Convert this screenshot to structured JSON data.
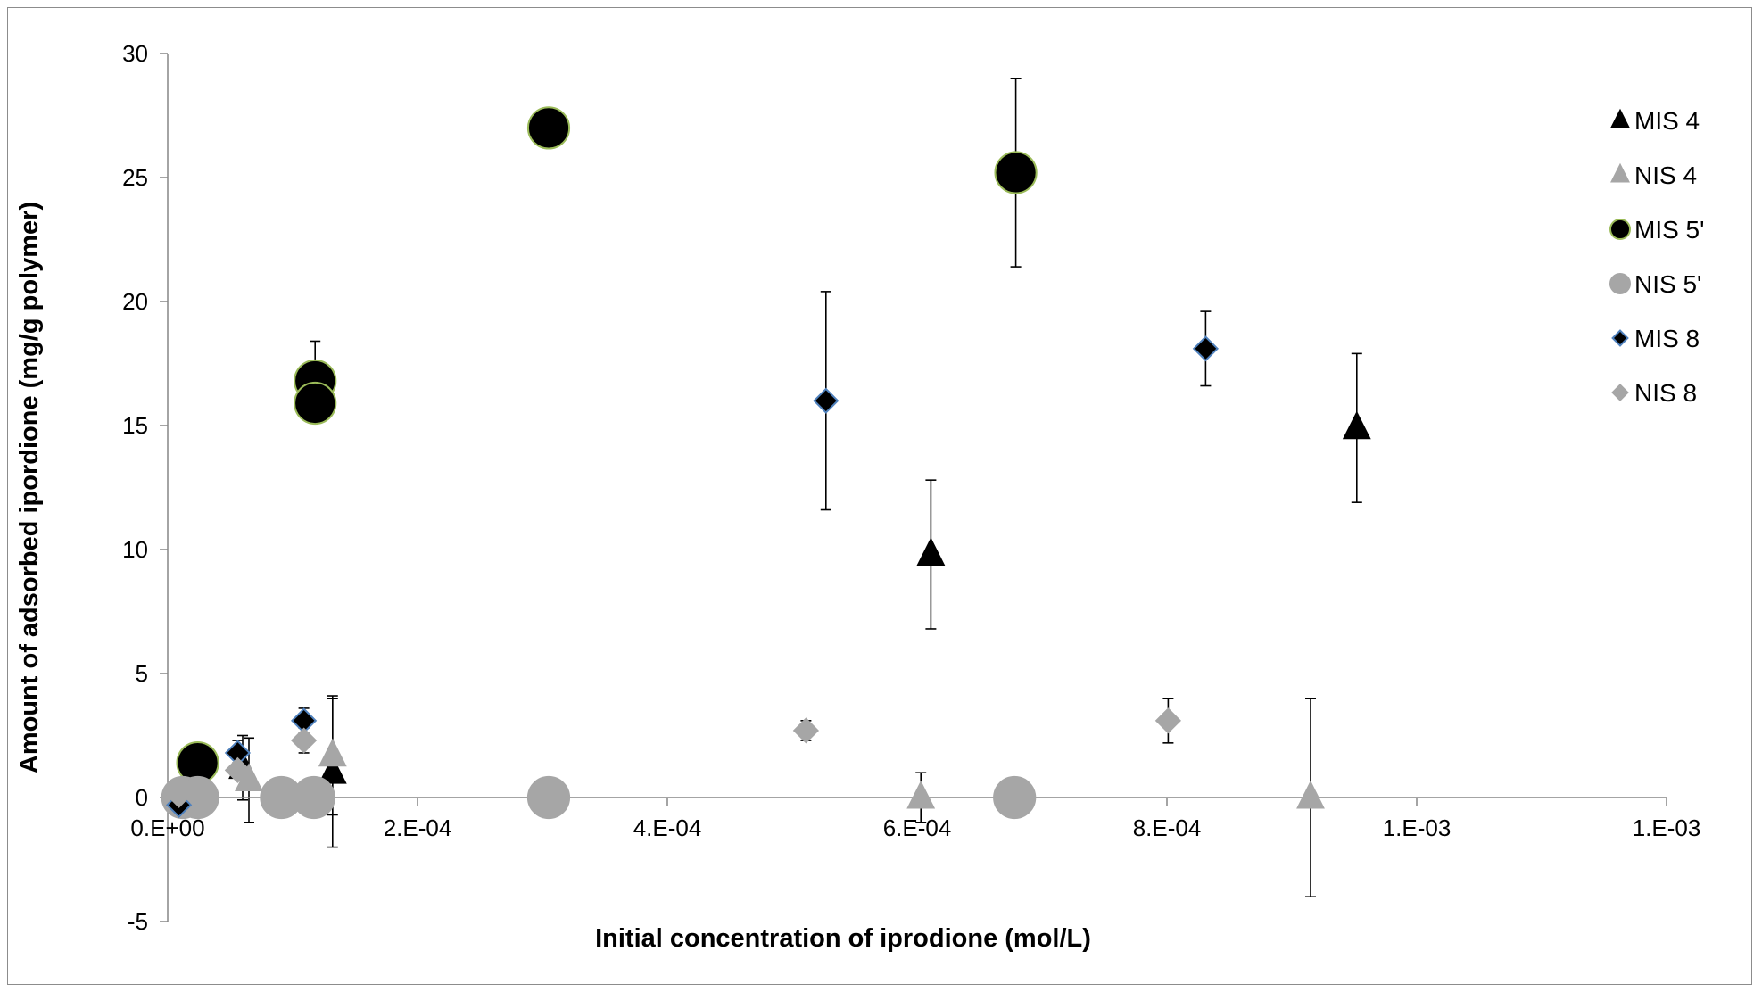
{
  "chart_data": {
    "type": "scatter",
    "title": "",
    "xlabel": "Initial concentration of iprodione (mol/L)",
    "ylabel": "Amount of adsorbed ipordione (mg/g polymer)",
    "xlim": [
      0,
      0.0012
    ],
    "ylim": [
      -5,
      30
    ],
    "x_ticks": [
      {
        "value": 0,
        "label": "0.E+00"
      },
      {
        "value": 0.0002,
        "label": "2.E-04"
      },
      {
        "value": 0.0004,
        "label": "4.E-04"
      },
      {
        "value": 0.0006,
        "label": "6.E-04"
      },
      {
        "value": 0.0008,
        "label": "8.E-04"
      },
      {
        "value": 0.001,
        "label": "1.E-03"
      },
      {
        "value": 0.0012,
        "label": "1.E-03"
      }
    ],
    "y_ticks": [
      {
        "value": -5,
        "label": "-5"
      },
      {
        "value": 0,
        "label": "0"
      },
      {
        "value": 5,
        "label": "5"
      },
      {
        "value": 10,
        "label": "10"
      },
      {
        "value": 15,
        "label": "15"
      },
      {
        "value": 20,
        "label": "20"
      },
      {
        "value": 25,
        "label": "25"
      },
      {
        "value": 30,
        "label": "30"
      }
    ],
    "grid": false,
    "legend_position": "right",
    "series": [
      {
        "name": "MIS 4",
        "marker": "triangle",
        "color": "#000000",
        "stroke": "#000000",
        "points": [
          {
            "x": 6e-05,
            "y": 1.2,
            "err": 1.3
          },
          {
            "x": 0.000132,
            "y": 1.0,
            "err": 3.0
          },
          {
            "x": 0.000611,
            "y": 9.8,
            "err": 3.0
          },
          {
            "x": 0.000952,
            "y": 14.9,
            "err": 3.0
          }
        ]
      },
      {
        "name": "NIS 4",
        "marker": "triangle",
        "color": "#a6a6a6",
        "stroke": "#a6a6a6",
        "points": [
          {
            "x": 6.5e-05,
            "y": 0.7,
            "err": 1.7
          },
          {
            "x": 0.000132,
            "y": 1.7,
            "err": 2.4
          },
          {
            "x": 0.000603,
            "y": 0.0,
            "err": 1.0
          },
          {
            "x": 0.000915,
            "y": 0.0,
            "err": 4.0
          }
        ]
      },
      {
        "name": "MIS 5'",
        "marker": "circle",
        "color": "#000000",
        "stroke": "#9bbb59",
        "points": [
          {
            "x": 2.4e-05,
            "y": 1.4,
            "err": 0
          },
          {
            "x": 0.000118,
            "y": 16.8,
            "err": 1.6
          },
          {
            "x": 0.000118,
            "y": 15.9,
            "err": 0.3
          },
          {
            "x": 0.000305,
            "y": 27.0,
            "err": 0
          },
          {
            "x": 0.000679,
            "y": 25.2,
            "err": 3.8
          }
        ]
      },
      {
        "name": "NIS 5'",
        "marker": "circle",
        "color": "#a6a6a6",
        "stroke": "#a6a6a6",
        "points": [
          {
            "x": 1.2e-05,
            "y": 0.0,
            "err": 0
          },
          {
            "x": 2.4e-05,
            "y": 0.0,
            "err": 0
          },
          {
            "x": 9.1e-05,
            "y": 0.0,
            "err": 0
          },
          {
            "x": 0.000117,
            "y": 0.0,
            "err": 0
          },
          {
            "x": 0.000305,
            "y": 0.0,
            "err": 0
          },
          {
            "x": 0.000678,
            "y": 0.0,
            "err": 0
          }
        ]
      },
      {
        "name": "MIS 8",
        "marker": "diamond",
        "color": "#000000",
        "stroke": "#4f81bd",
        "points": [
          {
            "x": 9e-06,
            "y": -0.3,
            "err": 0.3
          },
          {
            "x": 5.6e-05,
            "y": 1.8,
            "err": 0.5
          },
          {
            "x": 0.000109,
            "y": 3.1,
            "err": 0.5
          },
          {
            "x": 0.000527,
            "y": 16.0,
            "err": 4.4
          },
          {
            "x": 0.000831,
            "y": 18.1,
            "err": 1.5
          }
        ]
      },
      {
        "name": "NIS 8",
        "marker": "diamond",
        "color": "#a6a6a6",
        "stroke": "#a6a6a6",
        "points": [
          {
            "x": 9e-06,
            "y": 0.1,
            "err": 0.3
          },
          {
            "x": 5.6e-05,
            "y": 1.1,
            "err": 0.3
          },
          {
            "x": 0.000109,
            "y": 2.3,
            "err": 0.5
          },
          {
            "x": 0.000511,
            "y": 2.7,
            "err": 0.4
          },
          {
            "x": 0.000801,
            "y": 3.1,
            "err": 0.9
          }
        ]
      }
    ]
  }
}
